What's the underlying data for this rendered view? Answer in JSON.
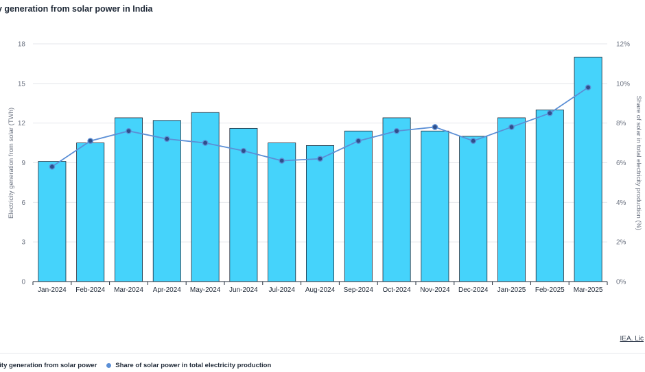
{
  "chart_data": {
    "type": "bar",
    "title": "y generation from solar power in India",
    "categories": [
      "Jan-2024",
      "Feb-2024",
      "Mar-2024",
      "Apr-2024",
      "May-2024",
      "Jun-2024",
      "Jul-2024",
      "Aug-2024",
      "Sep-2024",
      "Oct-2024",
      "Nov-2024",
      "Dec-2024",
      "Jan-2025",
      "Feb-2025",
      "Mar-2025"
    ],
    "series": [
      {
        "name": "city generation from solar power",
        "type": "bar",
        "axis": "left",
        "color": "#45d3fb",
        "values": [
          9.1,
          10.5,
          12.4,
          12.2,
          12.8,
          11.6,
          10.5,
          10.3,
          11.4,
          12.4,
          11.4,
          11.0,
          12.4,
          13.0,
          17.0
        ]
      },
      {
        "name": "Share of solar power in total electricity production",
        "type": "line",
        "axis": "right",
        "color": "#5b8fd6",
        "values": [
          5.8,
          7.1,
          7.6,
          7.2,
          7.0,
          6.6,
          6.1,
          6.2,
          7.1,
          7.6,
          7.8,
          7.1,
          7.8,
          8.5,
          9.8
        ]
      }
    ],
    "ylabel": "Electricity generation from solar (TWh)",
    "ylabel_right": "Share of solar in total electricity production (%)",
    "ylim": [
      0,
      18
    ],
    "yticks": [
      "0",
      "3",
      "6",
      "9",
      "12",
      "15",
      "18"
    ],
    "ylim_right": [
      0,
      12
    ],
    "yticks_right": [
      "0%",
      "2%",
      "4%",
      "6%",
      "8%",
      "10%",
      "12%"
    ],
    "grid": true,
    "legend_position": "bottom-left"
  },
  "source_label": "IEA. Lic",
  "legend": {
    "bar_label": "city generation from solar power",
    "line_label": "Share of solar power in total electricity production",
    "bar_color": "#45d3fb",
    "line_color": "#5b8fd6"
  }
}
